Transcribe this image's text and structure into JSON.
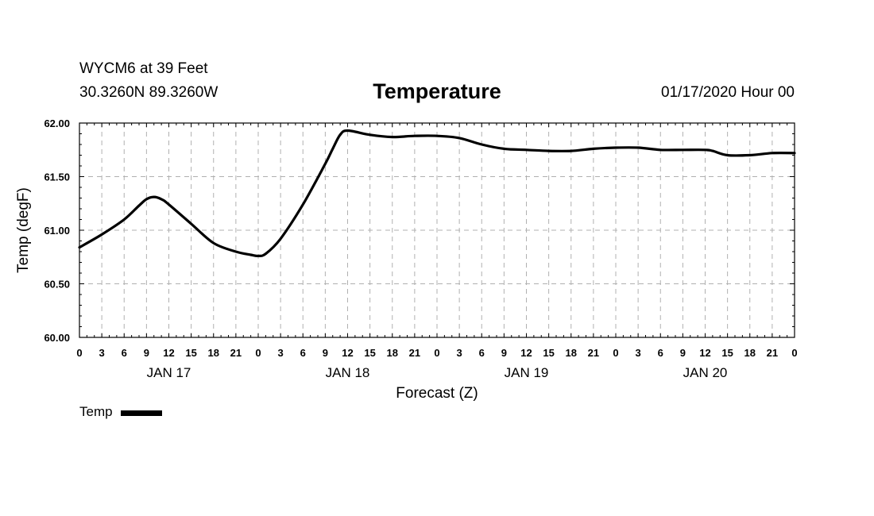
{
  "header": {
    "station": "WYCM6 at 39 Feet",
    "latlon": "30.3260N 89.3260W",
    "title": "Temperature",
    "datetime": "01/17/2020 Hour 00"
  },
  "legend": {
    "label": "Temp",
    "color": "#000000"
  },
  "chart_data": {
    "type": "line",
    "title": "Temperature",
    "xlabel": "Forecast (Z)",
    "ylabel": "Temp (degF)",
    "ylim": [
      60.0,
      62.0
    ],
    "xlim_hours": [
      0,
      96
    ],
    "y_ticks": [
      "60.00",
      "60.50",
      "61.00",
      "61.50",
      "62.00"
    ],
    "x_tick_step_hours": 3,
    "x_tick_labels": [
      "0",
      "3",
      "6",
      "9",
      "12",
      "15",
      "18",
      "21",
      "0",
      "3",
      "6",
      "9",
      "12",
      "15",
      "18",
      "21",
      "0",
      "3",
      "6",
      "9",
      "12",
      "15",
      "18",
      "21",
      "0",
      "3",
      "6",
      "9",
      "12",
      "15",
      "18",
      "21",
      "0"
    ],
    "day_labels": [
      {
        "label": "JAN 17",
        "hour": 12
      },
      {
        "label": "JAN 18",
        "hour": 36
      },
      {
        "label": "JAN 19",
        "hour": 60
      },
      {
        "label": "JAN 20",
        "hour": 84
      }
    ],
    "grid": true,
    "legend_position": "bottom-left",
    "series": [
      {
        "name": "Temp",
        "color": "#000000",
        "x": [
          0,
          3,
          6,
          8,
          9,
          10,
          11,
          12,
          15,
          18,
          21,
          23,
          24,
          25,
          27,
          30,
          33,
          34,
          35,
          36,
          39,
          42,
          45,
          48,
          51,
          54,
          57,
          60,
          63,
          66,
          69,
          72,
          75,
          78,
          81,
          84,
          85,
          87,
          90,
          93,
          96
        ],
        "y": [
          60.84,
          60.96,
          61.1,
          61.23,
          61.29,
          61.31,
          61.29,
          61.24,
          61.06,
          60.88,
          60.8,
          60.77,
          60.76,
          60.78,
          60.92,
          61.24,
          61.62,
          61.76,
          61.89,
          61.93,
          61.89,
          61.87,
          61.88,
          61.88,
          61.86,
          61.8,
          61.76,
          61.75,
          61.74,
          61.74,
          61.76,
          61.77,
          61.77,
          61.75,
          61.75,
          61.75,
          61.74,
          61.7,
          61.7,
          61.72,
          61.72
        ]
      }
    ]
  }
}
